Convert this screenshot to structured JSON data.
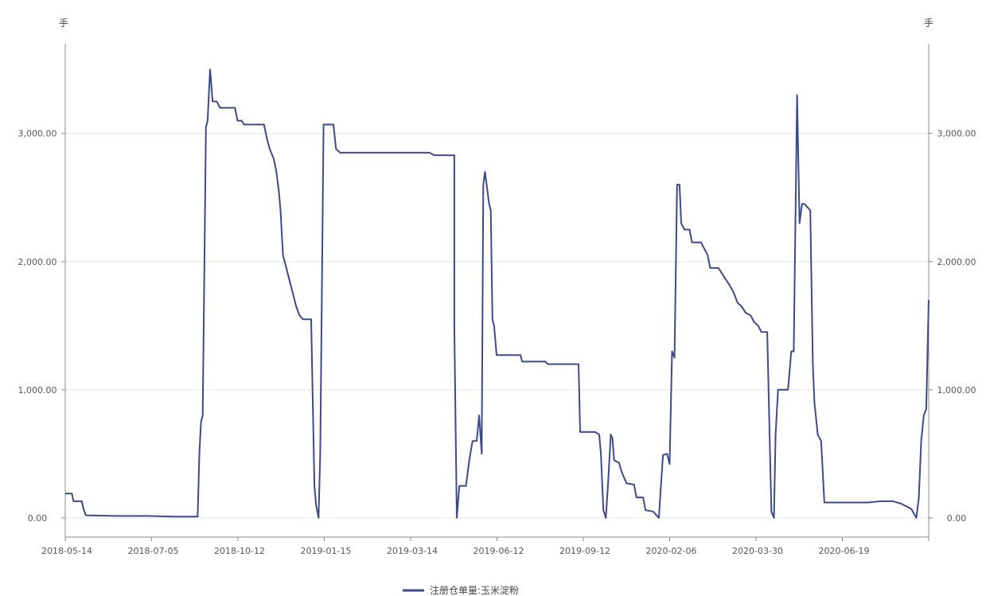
{
  "chart_data": {
    "type": "line",
    "y_unit_left": "手",
    "y_unit_right": "手",
    "ylim": [
      -150,
      3700
    ],
    "yticks": [
      0,
      1000,
      2000,
      3000
    ],
    "ytick_labels": [
      "0.00",
      "1,000.00",
      "2,000.00",
      "3,000.00"
    ],
    "xtick_labels": [
      "2018-05-14",
      "2018-07-05",
      "2018-10-12",
      "2019-01-15",
      "2019-03-14",
      "2019-06-12",
      "2019-09-12",
      "2020-02-06",
      "2020-03-30",
      "2020-06-19"
    ],
    "grid": true,
    "legend_position": "bottom-center",
    "series": [
      {
        "name": "注册仓单量:玉米淀粉",
        "color": "#3b4a8a",
        "points": [
          [
            0,
            190
          ],
          [
            8,
            190
          ],
          [
            10,
            130
          ],
          [
            14,
            130
          ],
          [
            20,
            130
          ],
          [
            22,
            70
          ],
          [
            25,
            20
          ],
          [
            60,
            15
          ],
          [
            100,
            15
          ],
          [
            130,
            10
          ],
          [
            160,
            10
          ],
          [
            162,
            500
          ],
          [
            164,
            750
          ],
          [
            166,
            800
          ],
          [
            170,
            3050
          ],
          [
            172,
            3100
          ],
          [
            175,
            3500
          ],
          [
            178,
            3250
          ],
          [
            183,
            3250
          ],
          [
            187,
            3200
          ],
          [
            205,
            3200
          ],
          [
            208,
            3100
          ],
          [
            213,
            3100
          ],
          [
            216,
            3070
          ],
          [
            240,
            3070
          ],
          [
            244,
            2950
          ],
          [
            247,
            2880
          ],
          [
            252,
            2800
          ],
          [
            255,
            2700
          ],
          [
            258,
            2550
          ],
          [
            260,
            2400
          ],
          [
            263,
            2050
          ],
          [
            267,
            1950
          ],
          [
            271,
            1850
          ],
          [
            275,
            1750
          ],
          [
            279,
            1650
          ],
          [
            283,
            1580
          ],
          [
            287,
            1550
          ],
          [
            297,
            1550
          ],
          [
            301,
            250
          ],
          [
            303,
            100
          ],
          [
            306,
            0
          ],
          [
            308,
            500
          ],
          [
            312,
            3070
          ],
          [
            324,
            3070
          ],
          [
            327,
            2880
          ],
          [
            332,
            2850
          ],
          [
            360,
            2850
          ],
          [
            440,
            2850
          ],
          [
            446,
            2830
          ],
          [
            470,
            2830
          ],
          [
            470,
            1500
          ],
          [
            473,
            0
          ],
          [
            476,
            250
          ],
          [
            484,
            250
          ],
          [
            488,
            450
          ],
          [
            492,
            600
          ],
          [
            497,
            600
          ],
          [
            500,
            800
          ],
          [
            503,
            500
          ],
          [
            505,
            2600
          ],
          [
            507,
            2700
          ],
          [
            509,
            2600
          ],
          [
            512,
            2450
          ],
          [
            514,
            2400
          ],
          [
            516,
            1550
          ],
          [
            518,
            1500
          ],
          [
            521,
            1270
          ],
          [
            530,
            1270
          ],
          [
            550,
            1270
          ],
          [
            552,
            1220
          ],
          [
            580,
            1220
          ],
          [
            583,
            1200
          ],
          [
            620,
            1200
          ],
          [
            622,
            670
          ],
          [
            640,
            670
          ],
          [
            645,
            650
          ],
          [
            647,
            500
          ],
          [
            650,
            60
          ],
          [
            653,
            0
          ],
          [
            656,
            300
          ],
          [
            659,
            650
          ],
          [
            661,
            620
          ],
          [
            663,
            450
          ],
          [
            669,
            430
          ],
          [
            672,
            360
          ],
          [
            678,
            270
          ],
          [
            687,
            260
          ],
          [
            690,
            160
          ],
          [
            698,
            160
          ],
          [
            701,
            60
          ],
          [
            710,
            50
          ],
          [
            717,
            0
          ],
          [
            722,
            490
          ],
          [
            727,
            500
          ],
          [
            730,
            420
          ],
          [
            733,
            1300
          ],
          [
            736,
            1250
          ],
          [
            739,
            2600
          ],
          [
            742,
            2600
          ],
          [
            744,
            2300
          ],
          [
            748,
            2250
          ],
          [
            754,
            2250
          ],
          [
            757,
            2150
          ],
          [
            768,
            2150
          ],
          [
            772,
            2100
          ],
          [
            776,
            2050
          ],
          [
            779,
            1950
          ],
          [
            789,
            1950
          ],
          [
            794,
            1900
          ],
          [
            799,
            1850
          ],
          [
            804,
            1800
          ],
          [
            808,
            1750
          ],
          [
            812,
            1680
          ],
          [
            817,
            1650
          ],
          [
            822,
            1600
          ],
          [
            828,
            1580
          ],
          [
            832,
            1530
          ],
          [
            837,
            1500
          ],
          [
            841,
            1450
          ],
          [
            848,
            1450
          ],
          [
            853,
            50
          ],
          [
            856,
            0
          ],
          [
            858,
            650
          ],
          [
            861,
            1000
          ],
          [
            873,
            1000
          ],
          [
            877,
            1300
          ],
          [
            880,
            1300
          ],
          [
            884,
            3300
          ],
          [
            887,
            2300
          ],
          [
            890,
            2450
          ],
          [
            893,
            2450
          ],
          [
            900,
            2400
          ],
          [
            903,
            1200
          ],
          [
            905,
            900
          ],
          [
            909,
            650
          ],
          [
            913,
            600
          ],
          [
            917,
            120
          ],
          [
            970,
            120
          ],
          [
            985,
            130
          ],
          [
            1000,
            130
          ],
          [
            1010,
            110
          ],
          [
            1022,
            70
          ],
          [
            1028,
            0
          ],
          [
            1031,
            150
          ],
          [
            1034,
            600
          ],
          [
            1037,
            800
          ],
          [
            1040,
            850
          ],
          [
            1043,
            1700
          ]
        ]
      }
    ]
  }
}
